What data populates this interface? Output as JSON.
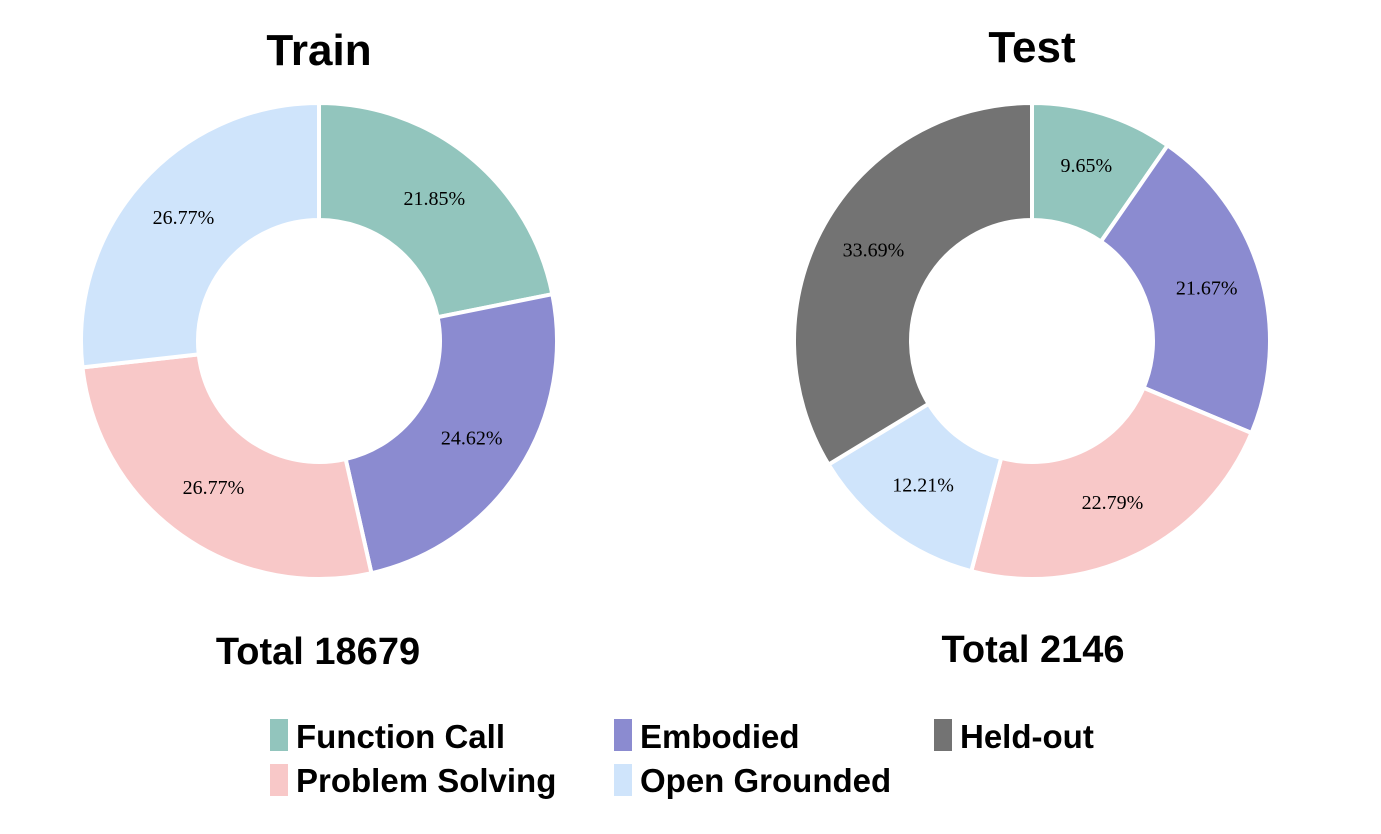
{
  "chart_data": [
    {
      "type": "pie",
      "title": "Train",
      "total_label": "Total 18679",
      "slices": [
        {
          "label": "Function Call",
          "value": 21.85,
          "value_label": "21.85%",
          "color": "#92c5bd"
        },
        {
          "label": "Embodied",
          "value": 24.62,
          "value_label": "24.62%",
          "color": "#8b8bd0"
        },
        {
          "label": "Problem Solving",
          "value": 26.77,
          "value_label": "26.77%",
          "color": "#f8c8c8"
        },
        {
          "label": "Open Grounded",
          "value": 26.77,
          "value_label": "26.77%",
          "color": "#cfe4fb"
        }
      ]
    },
    {
      "type": "pie",
      "title": "Test",
      "total_label": "Total 2146",
      "slices": [
        {
          "label": "Function Call",
          "value": 9.65,
          "value_label": "9.65%",
          "color": "#92c5bd"
        },
        {
          "label": "Embodied",
          "value": 21.67,
          "value_label": "21.67%",
          "color": "#8b8bd0"
        },
        {
          "label": "Problem Solving",
          "value": 22.79,
          "value_label": "22.79%",
          "color": "#f8c8c8"
        },
        {
          "label": "Open Grounded",
          "value": 12.21,
          "value_label": "12.21%",
          "color": "#cfe4fb"
        },
        {
          "label": "Held-out",
          "value": 33.69,
          "value_label": "33.69%",
          "color": "#737373"
        }
      ]
    }
  ],
  "legend": {
    "placement": "bottom-center",
    "items": [
      {
        "label": "Function Call",
        "color": "#92c5bd"
      },
      {
        "label": "Embodied",
        "color": "#8b8bd0"
      },
      {
        "label": "Held-out",
        "color": "#737373"
      },
      {
        "label": "Problem Solving",
        "color": "#f8c8c8"
      },
      {
        "label": "Open Grounded",
        "color": "#cfe4fb"
      }
    ]
  }
}
